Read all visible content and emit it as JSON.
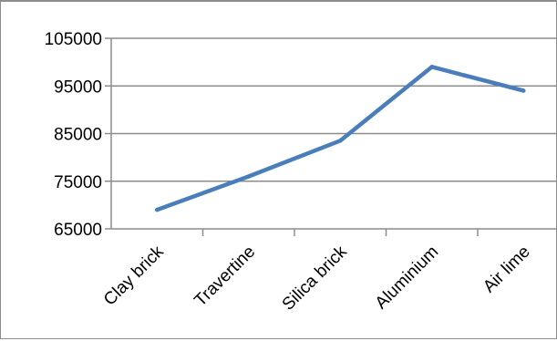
{
  "chart_data": {
    "type": "line",
    "title": "",
    "xlabel": "",
    "ylabel": "",
    "categories": [
      "Clay brick",
      "Travertine",
      "Silica brick",
      "Aluminium",
      "Air lime"
    ],
    "series": [
      {
        "values": [
          69000,
          76000,
          83500,
          99000,
          94000
        ],
        "color": "#4a7ebb"
      }
    ],
    "yticks": [
      "65000",
      "75000",
      "85000",
      "95000",
      "105000"
    ],
    "ylim": [
      65000,
      105000
    ],
    "grid": true,
    "legend": "none",
    "colors": {
      "gridline": "#8c8c8c",
      "axis": "#8c8c8c",
      "line": "#4a7ebb"
    }
  }
}
